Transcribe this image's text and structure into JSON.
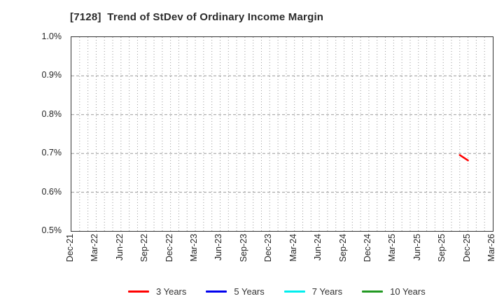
{
  "chart_data": {
    "type": "line",
    "title": "[7128]  Trend of StDev of Ordinary Income Margin",
    "ylabel": "",
    "xlabel": "",
    "y_axis": {
      "min": 0.5,
      "max": 1.0,
      "unit": "%",
      "tick_values": [
        1.0,
        0.9,
        0.8,
        0.7,
        0.6,
        0.5
      ],
      "tick_labels": [
        "1.0%",
        "0.9%",
        "0.8%",
        "0.7%",
        "0.6%",
        "0.5%"
      ]
    },
    "x_axis": {
      "start": "Dec-21",
      "end": "Mar-26",
      "months_total": 51,
      "tick_labels": [
        "Dec-21",
        "Mar-22",
        "Jun-22",
        "Sep-22",
        "Dec-22",
        "Mar-23",
        "Jun-23",
        "Sep-23",
        "Dec-23",
        "Mar-24",
        "Jun-24",
        "Sep-24",
        "Dec-24",
        "Mar-25",
        "Jun-25",
        "Sep-25",
        "Dec-25",
        "Mar-26"
      ],
      "tick_month_step": 3
    },
    "grid": {
      "vertical": "monthly dotted",
      "horizontal": "every 0.1% dashed",
      "color": "#9a9a9a"
    },
    "series": [
      {
        "name": "3 Years",
        "color": "#ff0000",
        "points": [
          {
            "x": "Nov-25",
            "month_index": 47,
            "value": 0.696
          },
          {
            "x": "Dec-25",
            "month_index": 48,
            "value": 0.682
          }
        ]
      },
      {
        "name": "5 Years",
        "color": "#0000ee",
        "points": []
      },
      {
        "name": "7 Years",
        "color": "#00eeee",
        "points": []
      },
      {
        "name": "10 Years",
        "color": "#229922",
        "points": []
      }
    ],
    "legend": {
      "position": "bottom",
      "entries": [
        {
          "label": "3 Years",
          "color": "#ff0000"
        },
        {
          "label": "5 Years",
          "color": "#0000ee"
        },
        {
          "label": "7 Years",
          "color": "#00eeee"
        },
        {
          "label": "10 Years",
          "color": "#229922"
        }
      ]
    }
  }
}
